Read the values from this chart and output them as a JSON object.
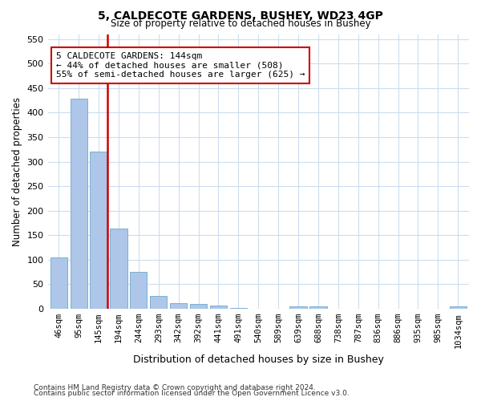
{
  "title1": "5, CALDECOTE GARDENS, BUSHEY, WD23 4GP",
  "title2": "Size of property relative to detached houses in Bushey",
  "xlabel": "Distribution of detached houses by size in Bushey",
  "ylabel": "Number of detached properties",
  "categories": [
    "46sqm",
    "95sqm",
    "145sqm",
    "194sqm",
    "244sqm",
    "293sqm",
    "342sqm",
    "392sqm",
    "441sqm",
    "491sqm",
    "540sqm",
    "589sqm",
    "639sqm",
    "688sqm",
    "738sqm",
    "787sqm",
    "836sqm",
    "886sqm",
    "935sqm",
    "985sqm",
    "1034sqm"
  ],
  "values": [
    105,
    428,
    320,
    163,
    75,
    27,
    11,
    10,
    7,
    2,
    0,
    0,
    5,
    5,
    0,
    0,
    0,
    0,
    0,
    0,
    5
  ],
  "bar_color": "#aec6e8",
  "bar_edge_color": "#7bafd4",
  "red_line_index": 2,
  "annotation_text": "5 CALDECOTE GARDENS: 144sqm\n← 44% of detached houses are smaller (508)\n55% of semi-detached houses are larger (625) →",
  "annotation_box_color": "#ffffff",
  "annotation_box_edge": "#cc0000",
  "red_line_color": "#cc0000",
  "footer1": "Contains HM Land Registry data © Crown copyright and database right 2024.",
  "footer2": "Contains public sector information licensed under the Open Government Licence v3.0.",
  "bg_color": "#ffffff",
  "grid_color": "#ccddee",
  "ylim": [
    0,
    560
  ],
  "yticks": [
    0,
    50,
    100,
    150,
    200,
    250,
    300,
    350,
    400,
    450,
    500,
    550
  ]
}
